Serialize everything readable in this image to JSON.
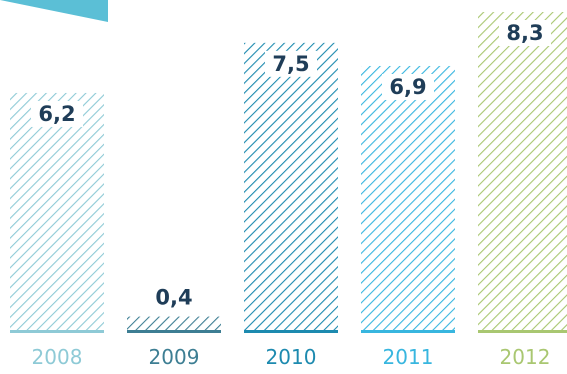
{
  "chart_data": {
    "type": "bar",
    "categories": [
      "2008",
      "2009",
      "2010",
      "2011",
      "2012"
    ],
    "values": [
      6.2,
      0.4,
      7.5,
      6.9,
      8.3
    ],
    "value_labels": [
      "6,2",
      "0,4",
      "7,5",
      "6,9",
      "8,3"
    ],
    "colors": [
      "#8ecad6",
      "#3d7e93",
      "#1d8aaf",
      "#38b6df",
      "#a9c771"
    ],
    "title": "",
    "xlabel": "",
    "ylabel": "",
    "ylim": [
      0,
      8.3
    ],
    "grid": false,
    "legend": "none",
    "fill_pattern": "diagonal-hatch"
  }
}
